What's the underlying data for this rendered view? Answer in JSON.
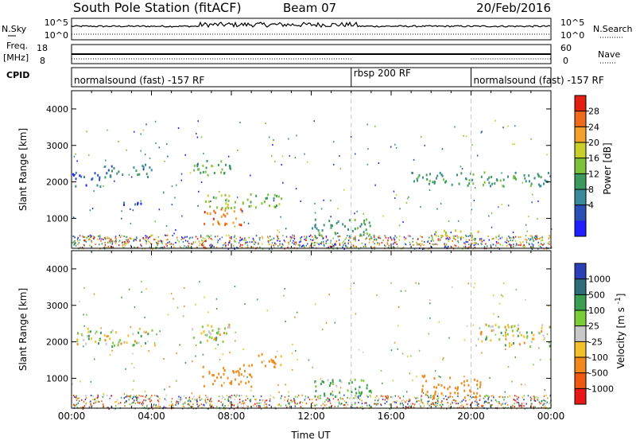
{
  "header": {
    "station_title": "South Pole Station (fitACF)",
    "beam": "Beam 07",
    "date": "20/Feb/2016"
  },
  "noise_panel": {
    "left_label": "N.Sky",
    "right_label": "N.Search",
    "left_ticks": [
      "10^5",
      "10^0"
    ],
    "right_ticks": [
      "10^5",
      "10^0"
    ]
  },
  "freq_panel": {
    "left_label_line1": "Freq.",
    "left_label_line2": "[MHz]",
    "right_label": "Nave",
    "left_ticks": [
      "18",
      "8"
    ],
    "right_ticks": [
      "60",
      "0"
    ]
  },
  "cpid_panel": {
    "label": "CPID",
    "segments": [
      {
        "name": "normalsound (fast) -157 RF",
        "start_hour": 0,
        "end_hour": 14
      },
      {
        "name": "rbsp 200 RF",
        "start_hour": 14,
        "end_hour": 20
      },
      {
        "name": "normalsound (fast) -157 RF",
        "start_hour": 20,
        "end_hour": 24
      }
    ]
  },
  "chart_data": [
    {
      "type": "heatmap",
      "title": "",
      "xlabel": "",
      "ylabel": "Slant Range [km]",
      "xlim": [
        0,
        24
      ],
      "ylim": [
        180,
        4500
      ],
      "yticks": [
        1000,
        2000,
        3000,
        4000
      ],
      "colorbar": {
        "label": "Power [dB]",
        "range": [
          0,
          32
        ],
        "ticks": [
          "4",
          "8",
          "12",
          "16",
          "20",
          "24",
          "28"
        ],
        "colors": [
          "#1f1fff",
          "#2a4fb5",
          "#3a8a9a",
          "#3c9a5e",
          "#7cc23a",
          "#c8cf2a",
          "#f2a12a",
          "#f06a1c",
          "#e02010"
        ]
      },
      "features": [
        {
          "start_hour": 0.0,
          "end_hour": 1.5,
          "range_km": [
            1900,
            2300
          ],
          "value": 6
        },
        {
          "start_hour": 1.5,
          "end_hour": 4.0,
          "range_km": [
            2150,
            2500
          ],
          "value": 10
        },
        {
          "start_hour": 1.5,
          "end_hour": 3.5,
          "range_km": [
            1400,
            1500
          ],
          "value": 6
        },
        {
          "start_hour": 6.0,
          "end_hour": 8.0,
          "range_km": [
            2200,
            2650
          ],
          "value": 14
        },
        {
          "start_hour": 6.5,
          "end_hour": 10.5,
          "range_km": [
            1300,
            1700
          ],
          "value": 16
        },
        {
          "start_hour": 6.5,
          "end_hour": 8.5,
          "range_km": [
            800,
            1300
          ],
          "value": 26
        },
        {
          "start_hour": 12.0,
          "end_hour": 15.0,
          "range_km": [
            500,
            1000
          ],
          "value": 12
        },
        {
          "start_hour": 18.0,
          "end_hour": 20.5,
          "range_km": [
            500,
            700
          ],
          "value": 18
        },
        {
          "start_hour": 17.0,
          "end_hour": 24.0,
          "range_km": [
            1900,
            2300
          ],
          "value": 12
        }
      ]
    },
    {
      "type": "heatmap",
      "title": "",
      "xlabel": "Time UT",
      "ylabel": "Slant Range [km]",
      "xlim": [
        0,
        24
      ],
      "ylim": [
        180,
        4500
      ],
      "xticks": [
        "00:00",
        "04:00",
        "08:00",
        "12:00",
        "16:00",
        "20:00",
        "00:00"
      ],
      "yticks": [
        1000,
        2000,
        3000,
        4000
      ],
      "colorbar": {
        "label": "Velocity [m s^-1]",
        "ticks": [
          "1000",
          "500",
          "100",
          "25",
          "-25",
          "-100",
          "-500",
          "-1000"
        ],
        "colors": [
          "#2a3fb5",
          "#2f6e78",
          "#3aa050",
          "#7ccc3a",
          "#c8c8c8",
          "#f2c02a",
          "#f08a1c",
          "#f05a10",
          "#e81818"
        ]
      },
      "features": [
        {
          "start_hour": 0.0,
          "end_hour": 4.0,
          "range_km": [
            1900,
            2400
          ],
          "value": 0
        },
        {
          "start_hour": 6.0,
          "end_hour": 8.0,
          "range_km": [
            2000,
            2600
          ],
          "value": 0
        },
        {
          "start_hour": 6.5,
          "end_hour": 9.0,
          "range_km": [
            800,
            1400
          ],
          "value": -300
        },
        {
          "start_hour": 9.0,
          "end_hour": 10.5,
          "range_km": [
            1300,
            1700
          ],
          "value": -200
        },
        {
          "start_hour": 12.0,
          "end_hour": 15.0,
          "range_km": [
            500,
            1000
          ],
          "value": 150
        },
        {
          "start_hour": 17.5,
          "end_hour": 20.5,
          "range_km": [
            500,
            1100
          ],
          "value": -300
        },
        {
          "start_hour": 20.0,
          "end_hour": 24.0,
          "range_km": [
            1900,
            2500
          ],
          "value": 0
        }
      ]
    }
  ],
  "colors": {
    "dashed_marker": "#c8c8c8",
    "axis": "#000000"
  }
}
